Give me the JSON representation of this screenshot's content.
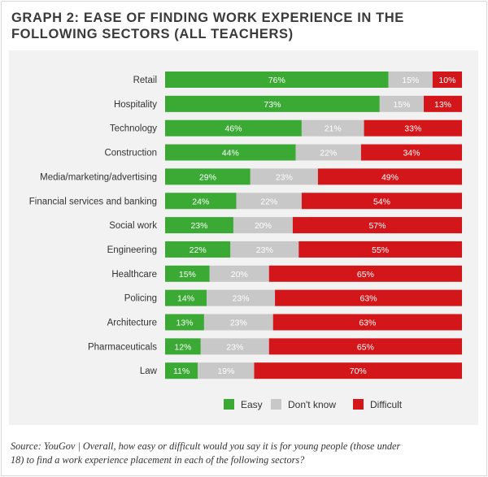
{
  "title": {
    "line1": "GRAPH 2: EASE OF FINDING WORK EXPERIENCE IN THE",
    "line2": "FOLLOWING SECTORS (ALL TEACHERS)"
  },
  "source": {
    "line1": "Source: YouGov | Overall, how easy or difficult would you say it is for young people (those under",
    "line2": "18) to find a work experience placement in each of the following sectors?"
  },
  "chart_data": {
    "type": "bar",
    "orientation": "horizontal",
    "stacked": true,
    "categories": [
      "Retail",
      "Hospitality",
      "Technology",
      "Construction",
      "Media/marketing/advertising",
      "Financial services and banking",
      "Social work",
      "Engineering",
      "Healthcare",
      "Policing",
      "Architecture",
      "Pharmaceuticals",
      "Law"
    ],
    "series": [
      {
        "name": "Easy",
        "color": "#3aaa35",
        "values": [
          76,
          73,
          46,
          44,
          29,
          24,
          23,
          22,
          15,
          14,
          13,
          12,
          11
        ]
      },
      {
        "name": "Don't know",
        "color": "#c8c8c8",
        "values": [
          15,
          15,
          21,
          22,
          23,
          22,
          20,
          23,
          20,
          23,
          23,
          23,
          19
        ]
      },
      {
        "name": "Difficult",
        "color": "#d2161a",
        "values": [
          10,
          13,
          33,
          34,
          49,
          54,
          57,
          55,
          65,
          63,
          63,
          65,
          70
        ]
      }
    ],
    "value_suffix": "%",
    "xlim": [
      0,
      100
    ],
    "legend_position": "bottom",
    "grid": false
  }
}
